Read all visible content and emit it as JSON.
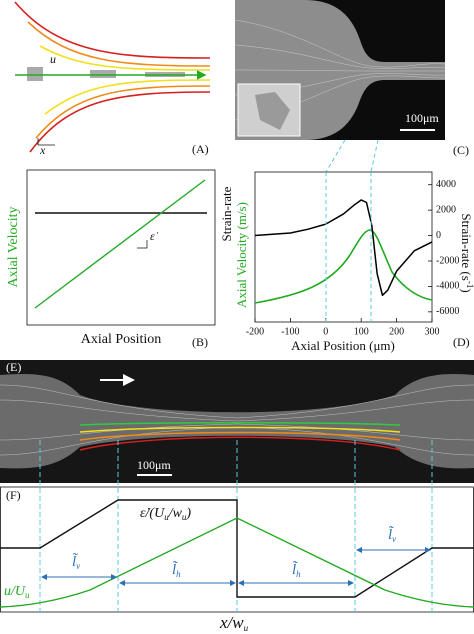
{
  "panel_A": {
    "label": "(A)",
    "u": "u",
    "x": "x"
  },
  "panel_B": {
    "label": "(B)",
    "y_label": "Axial Velocity",
    "x_label": "Axial Position",
    "slope": "ε̇"
  },
  "panel_C": {
    "label": "(C)",
    "scale": "100μm"
  },
  "chart_data": {
    "type": "line",
    "label": "(D)",
    "x_label": "Axial Position (μm)",
    "y_label_velocity": "Axial Velocity (m/s)",
    "y_label_rate": "Strain-rate",
    "y2_label": [
      "Strain-rate (s",
      "-1",
      ")"
    ],
    "x": [
      -200,
      -150,
      -100,
      -50,
      0,
      50,
      80,
      100,
      115,
      130,
      145,
      160,
      175,
      200,
      250,
      300
    ],
    "series": [
      {
        "name": "Strain-rate",
        "color": "#000000",
        "axis": "y2",
        "values": [
          0,
          100,
          200,
          500,
          900,
          1700,
          2400,
          2800,
          2600,
          800,
          -3000,
          -4700,
          -4300,
          -2800,
          -1200,
          -500
        ]
      }
    ],
    "xlim": [
      -200,
      300
    ],
    "xticks": [
      -200,
      -100,
      0,
      100,
      200,
      300
    ],
    "y2lim": [
      -6800,
      5000
    ],
    "y2ticks": [
      4000,
      2000,
      0,
      -2000,
      -4000,
      -6000
    ]
  },
  "panel_E": {
    "label": "(E)",
    "scale": "100μm"
  },
  "panel_F": {
    "label": "(F)",
    "rate": [
      "ε̇/(U",
      "u",
      "/w",
      "u",
      ")"
    ],
    "velocity": [
      "u/U",
      "u"
    ],
    "x_label": [
      "x/w",
      "u"
    ],
    "l_v": [
      "l̃",
      "v"
    ],
    "l_h": [
      "l̃",
      "h"
    ]
  }
}
